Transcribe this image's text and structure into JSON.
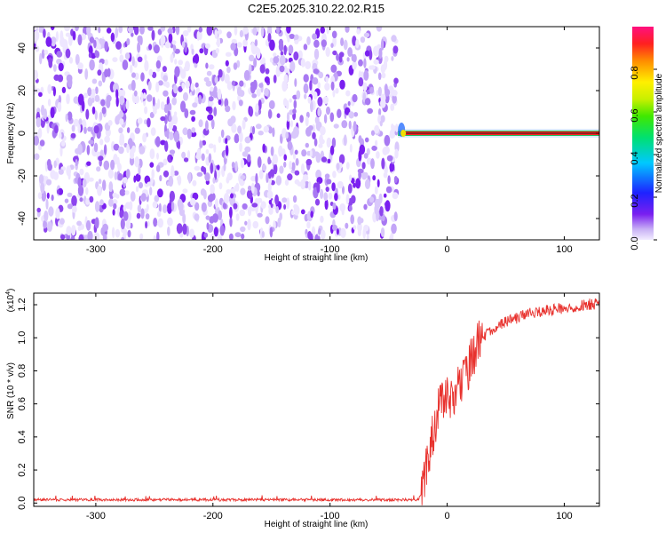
{
  "title": "C2E5.2025.310.22.02.R15",
  "chart_data": [
    {
      "type": "heatmap",
      "xlabel": "Height of straight line (km)",
      "ylabel": "Frequency (Hz)",
      "xlim": [
        -353,
        130
      ],
      "ylim": [
        -50,
        50
      ],
      "x_ticks": [
        -300,
        -200,
        -100,
        0,
        100
      ],
      "y_ticks": [
        -40,
        -20,
        0,
        20,
        40
      ],
      "noise_region_x": [
        -353,
        -42
      ],
      "tone_start_x": -42,
      "tone_frequency": 0,
      "colorbar": {
        "label": "Normalized spectral amplitude",
        "range": [
          0,
          1
        ],
        "ticks": [
          0.0,
          0.2,
          0.4,
          0.6,
          0.8
        ],
        "colormap": "rainbow"
      }
    },
    {
      "type": "line",
      "xlabel": "Height of straight line (km)",
      "ylabel": "SNR (10 * v/v)",
      "y_multiplier": "(x10^4)",
      "xlim": [
        -353,
        130
      ],
      "ylim": [
        -0.02,
        1.27
      ],
      "x_ticks": [
        -300,
        -200,
        -100,
        0,
        100
      ],
      "y_ticks": [
        0.0,
        0.2,
        0.4,
        0.6,
        0.8,
        1.0,
        1.2
      ],
      "line_color": "#e8322e",
      "series": [
        {
          "x": [
            -353,
            -300,
            -250,
            -200,
            -150,
            -100,
            -50,
            -25,
            -22,
            -20,
            -16,
            -12,
            -8,
            -4,
            0,
            5,
            10,
            15,
            20,
            25,
            30,
            40,
            50,
            60,
            70,
            80,
            90,
            100,
            110,
            120,
            130
          ],
          "values": [
            0.02,
            0.02,
            0.02,
            0.02,
            0.02,
            0.02,
            0.02,
            0.02,
            0.05,
            0.15,
            0.3,
            0.42,
            0.55,
            0.62,
            0.65,
            0.65,
            0.7,
            0.78,
            0.85,
            0.95,
            1.0,
            1.06,
            1.1,
            1.12,
            1.15,
            1.16,
            1.17,
            1.18,
            1.19,
            1.2,
            1.21
          ]
        }
      ]
    }
  ]
}
